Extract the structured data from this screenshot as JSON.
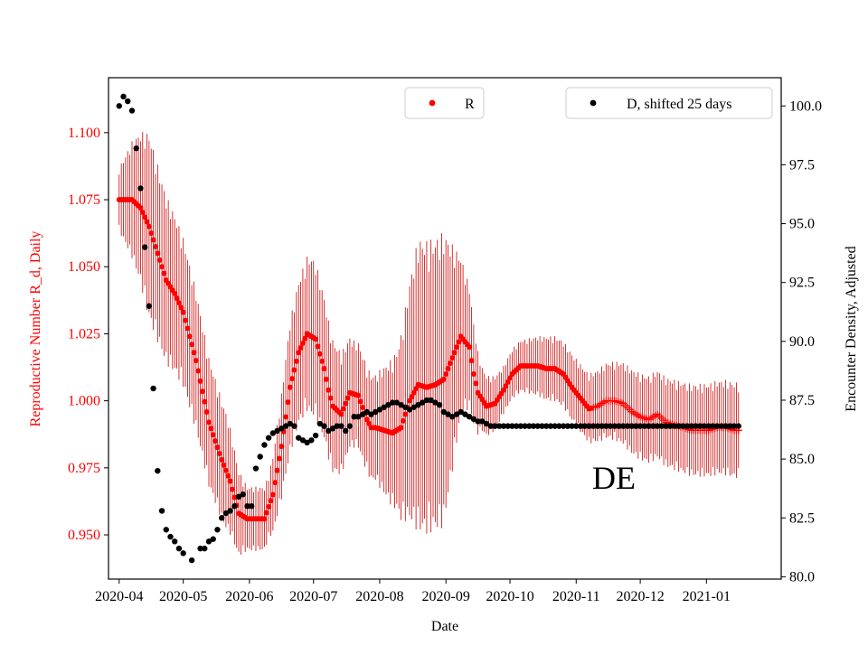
{
  "chart_data": {
    "type": "scatter",
    "title": "",
    "annotation": "DE",
    "xlabel": "Date",
    "ylabel_left": "Reproductive Number R_d, Daily",
    "ylabel_right": "Encounter Density, Adjusted",
    "x_ticks": [
      "2020-04",
      "2020-05",
      "2020-06",
      "2020-07",
      "2020-08",
      "2020-09",
      "2020-10",
      "2020-11",
      "2020-12",
      "2021-01"
    ],
    "y_left_ticks": [
      "0.950",
      "0.975",
      "1.000",
      "1.025",
      "1.050",
      "1.075",
      "1.100"
    ],
    "y_right_ticks": [
      "80.0",
      "82.5",
      "85.0",
      "87.5",
      "90.0",
      "92.5",
      "95.0",
      "97.5",
      "100.0"
    ],
    "ylim_left": [
      0.9335,
      1.1205
    ],
    "ylim_right": [
      79.9,
      101.2
    ],
    "x_range_days": [
      -5,
      310
    ],
    "x_tick_days": [
      0,
      30,
      61,
      91,
      122,
      153,
      183,
      214,
      244,
      275
    ],
    "legend": [
      {
        "label": "R",
        "color": "#ff0000",
        "position": "top-center"
      },
      {
        "label": "D, shifted 25 days",
        "color": "#000000",
        "position": "top-right"
      }
    ],
    "colors": {
      "R": "#ff0000",
      "R_errorbar": "#cc0000",
      "D": "#000000",
      "left_axis": "#ff0000"
    },
    "series": [
      {
        "name": "R",
        "axis": "left",
        "marker": "dot, plus markers from 2020-11-09",
        "start_date": "2020-04-01",
        "step_days": 1,
        "knots_day": [
          0,
          6,
          10,
          14,
          18,
          22,
          26,
          30,
          36,
          42,
          48,
          52,
          56,
          60,
          64,
          68,
          72,
          76,
          80,
          84,
          88,
          92,
          96,
          98,
          100,
          104,
          108,
          112,
          116,
          118,
          120,
          124,
          128,
          132,
          136,
          140,
          144,
          148,
          152,
          154,
          156,
          160,
          164,
          166,
          168,
          172,
          176,
          180,
          184,
          188,
          192,
          196,
          200,
          204,
          208,
          212,
          216,
          220,
          224,
          228,
          232,
          236,
          240,
          244,
          248,
          252,
          256,
          260,
          264,
          268,
          272,
          276,
          280,
          284,
          288,
          290
        ],
        "knots_value": [
          1.075,
          1.075,
          1.072,
          1.065,
          1.055,
          1.045,
          1.04,
          1.033,
          1.015,
          0.992,
          0.978,
          0.97,
          0.958,
          0.956,
          0.956,
          0.956,
          0.965,
          0.983,
          1.005,
          1.018,
          1.025,
          1.023,
          1.012,
          1.004,
          0.998,
          0.995,
          1.003,
          1.002,
          0.993,
          0.99,
          0.99,
          0.989,
          0.988,
          0.99,
          1.0,
          1.006,
          1.005,
          1.006,
          1.008,
          1.012,
          1.016,
          1.024,
          1.02,
          1.01,
          1.003,
          0.998,
          0.999,
          1.004,
          1.01,
          1.013,
          1.013,
          1.013,
          1.012,
          1.012,
          1.01,
          1.005,
          1.001,
          0.997,
          0.998,
          1.0,
          1.0,
          0.999,
          0.996,
          0.994,
          0.993,
          0.995,
          0.992,
          0.991,
          0.99,
          0.989,
          0.989,
          0.989,
          0.99,
          0.99,
          0.989,
          0.989
        ],
        "plus_marker_from_day": 222,
        "errorbar_halfwidth_knots_day": [
          0,
          14,
          30,
          50,
          60,
          70,
          80,
          90,
          110,
          120,
          130,
          140,
          152,
          160,
          170,
          180,
          190,
          200,
          220,
          240,
          260,
          290
        ],
        "errorbar_halfwidth_knots": [
          0.012,
          0.035,
          0.028,
          0.022,
          0.012,
          0.012,
          0.025,
          0.03,
          0.02,
          0.02,
          0.03,
          0.055,
          0.055,
          0.03,
          0.012,
          0.009,
          0.01,
          0.012,
          0.013,
          0.016,
          0.017,
          0.018
        ]
      },
      {
        "name": "D, shifted 25 days",
        "axis": "right",
        "marker": "dot",
        "start_date": "2020-04-01",
        "step_days": 1,
        "segments": [
          {
            "days": [
              0,
              2,
              4,
              6,
              8,
              10,
              12,
              14,
              16,
              18,
              20,
              22,
              24,
              26,
              28,
              30,
              34,
              38,
              40,
              42,
              44,
              46,
              48,
              50,
              52,
              54,
              56,
              58,
              60,
              62,
              64,
              66,
              68,
              70,
              72,
              74,
              76,
              78,
              80,
              82,
              84,
              86,
              88,
              90,
              92,
              94,
              96,
              98,
              100,
              102,
              104,
              106,
              108,
              110,
              112,
              114,
              116,
              118,
              120,
              122,
              124,
              126,
              128,
              130,
              132,
              134,
              136,
              138,
              140,
              142,
              144,
              146,
              148,
              150,
              152,
              154,
              156,
              158,
              160,
              162,
              164,
              166,
              168,
              170,
              172,
              174,
              176,
              178,
              180,
              182,
              184,
              186,
              188,
              190,
              192,
              194,
              196,
              198,
              200,
              202,
              204,
              206,
              208,
              210,
              212,
              214,
              216,
              218,
              220,
              222,
              224,
              226,
              228,
              230,
              232,
              234,
              236,
              238,
              240,
              242,
              244,
              246,
              248,
              250,
              252,
              254,
              256,
              258,
              260,
              262,
              264,
              266,
              268,
              270,
              272,
              274,
              276,
              278,
              280,
              282,
              284,
              286,
              288,
              290
            ],
            "values": [
              100,
              100.4,
              100.2,
              99.8,
              98.2,
              96.5,
              94,
              91.5,
              88,
              84.5,
              82.8,
              82,
              81.7,
              81.5,
              81.2,
              81,
              80.7,
              81.2,
              81.2,
              81.5,
              81.6,
              82,
              82.5,
              82.7,
              82.8,
              83,
              83.4,
              83.5,
              83,
              83,
              84.6,
              85.1,
              85.6,
              85.9,
              86.1,
              86.2,
              86.3,
              86.4,
              86.5,
              86.4,
              85.9,
              85.8,
              85.7,
              85.8,
              86.0,
              86.5,
              86.4,
              86.2,
              86.3,
              86.4,
              86.4,
              86.2,
              86.4,
              86.8,
              86.8,
              86.9,
              87.0,
              86.9,
              87.0,
              87.1,
              87.2,
              87.3,
              87.4,
              87.4,
              87.3,
              87.2,
              87.1,
              87.2,
              87.3,
              87.4,
              87.5,
              87.5,
              87.4,
              87.3,
              87.0,
              86.9,
              86.8,
              86.9,
              87.0,
              86.9,
              86.8,
              86.7,
              86.6,
              86.6,
              86.5,
              86.4,
              86.4,
              86.4,
              86.4,
              86.4,
              86.4,
              86.4,
              86.4,
              86.4,
              86.4,
              86.4,
              86.4,
              86.4,
              86.4,
              86.4,
              86.4,
              86.4,
              86.4,
              86.4,
              86.4,
              86.4,
              86.4,
              86.4,
              86.4,
              86.4,
              86.4,
              86.4,
              86.4,
              86.4,
              86.4,
              86.4,
              86.4,
              86.4,
              86.4,
              86.4,
              86.4,
              86.4,
              86.4,
              86.4,
              86.4,
              86.4,
              86.4,
              86.4,
              86.4,
              86.4,
              86.4,
              86.4,
              86.4,
              86.4,
              86.4,
              86.4,
              86.4,
              86.4,
              86.4,
              86.4,
              86.4,
              86.4,
              86.4,
              86.4
            ]
          }
        ]
      }
    ]
  }
}
